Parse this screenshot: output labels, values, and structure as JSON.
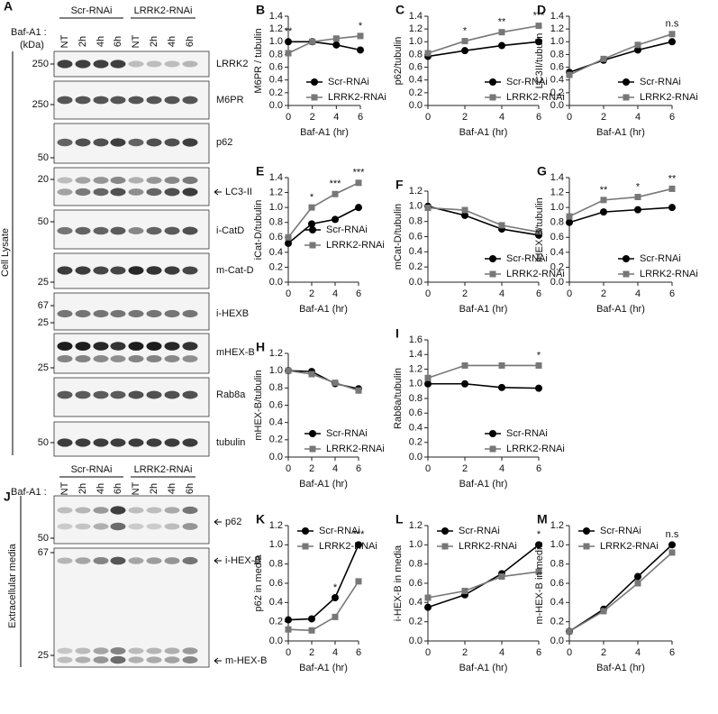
{
  "chart_data": [
    {
      "type": "line",
      "label": "B",
      "ylabel": "M6PR / tubulin",
      "xlabel": "Baf-A1 (hr)",
      "x": [
        0,
        2,
        4,
        6
      ],
      "xlim": [
        0,
        6
      ],
      "xticks": [
        0,
        2,
        4,
        6
      ],
      "ylim": [
        0,
        1.4
      ],
      "yticks": [
        {
          "value": 0,
          "label": "0.0"
        },
        0.2,
        0.4,
        0.6,
        0.8,
        {
          "value": 1,
          "label": "1.0"
        },
        1.2,
        1.4
      ],
      "legend": "lower-right",
      "series": [
        {
          "name": "Scr-RNAi",
          "color": "#000000",
          "values": [
            1.0,
            1.0,
            0.95,
            0.87
          ]
        },
        {
          "name": "LRRK2-RNAi",
          "color": "#777777",
          "values": [
            0.82,
            1.0,
            1.05,
            1.09
          ]
        }
      ],
      "annotations": [
        {
          "x": 0,
          "text": "**"
        },
        {
          "x": 6,
          "text": "*"
        }
      ]
    },
    {
      "type": "line",
      "label": "C",
      "ylabel": "p62/tubulin",
      "xlabel": "Baf-A1 (hr)",
      "x": [
        0,
        2,
        4,
        6
      ],
      "xlim": [
        0,
        6
      ],
      "xticks": [
        0,
        2,
        4,
        6
      ],
      "ylim": [
        0,
        1.4
      ],
      "yticks": [
        {
          "value": 0,
          "label": "0.0"
        },
        0.2,
        0.4,
        0.6,
        0.8,
        {
          "value": 1,
          "label": "1.0"
        },
        1.2,
        1.4
      ],
      "legend": "lower-right",
      "series": [
        {
          "name": "Scr-RNAi",
          "color": "#000000",
          "values": [
            0.77,
            0.86,
            0.94,
            1.0
          ]
        },
        {
          "name": "LRRK2-RNAi",
          "color": "#777777",
          "values": [
            0.82,
            1.01,
            1.15,
            1.25
          ]
        }
      ],
      "annotations": [
        {
          "x": 2,
          "text": "*"
        },
        {
          "x": 4,
          "text": "**"
        },
        {
          "x": 6,
          "text": "***"
        }
      ]
    },
    {
      "type": "line",
      "label": "D",
      "ylabel": "LC3II/tubulin",
      "xlabel": "Baf-A1 (hr)",
      "x": [
        0,
        2,
        4,
        6
      ],
      "xlim": [
        0,
        6
      ],
      "xticks": [
        0,
        2,
        4,
        6
      ],
      "ylim": [
        0,
        1.4
      ],
      "yticks": [
        {
          "value": 0,
          "label": "0.0"
        },
        0.2,
        0.4,
        0.6,
        0.8,
        {
          "value": 1,
          "label": "1.0"
        },
        1.2,
        1.4
      ],
      "legend": "lower-right",
      "series": [
        {
          "name": "Scr-RNAi",
          "color": "#000000",
          "values": [
            0.52,
            0.71,
            0.87,
            1.0
          ]
        },
        {
          "name": "LRRK2-RNAi",
          "color": "#777777",
          "values": [
            0.48,
            0.73,
            0.95,
            1.12
          ]
        }
      ],
      "annotations": [
        {
          "x": 6,
          "text": "n.s"
        }
      ]
    },
    {
      "type": "line",
      "label": "E",
      "ylabel": "iCat-D/tubulin",
      "xlabel": "Baf-A1 (hr)",
      "x": [
        0,
        2,
        4,
        6
      ],
      "xlim": [
        0,
        6
      ],
      "xticks": [
        0,
        2,
        4,
        6
      ],
      "ylim": [
        0,
        1.4
      ],
      "yticks": [
        {
          "value": 0,
          "label": "0.0"
        },
        0.2,
        0.4,
        0.6,
        0.8,
        {
          "value": 1,
          "label": "1.0"
        },
        1.2,
        1.4
      ],
      "legend": "center-right",
      "series": [
        {
          "name": "Scr-RNAi",
          "color": "#000000",
          "values": [
            0.52,
            0.78,
            0.84,
            1.0
          ]
        },
        {
          "name": "LRRK2-RNAi",
          "color": "#777777",
          "values": [
            0.6,
            1.0,
            1.18,
            1.33
          ]
        }
      ],
      "annotations": [
        {
          "x": 2,
          "text": "*"
        },
        {
          "x": 4,
          "text": "***"
        },
        {
          "x": 6,
          "text": "***"
        }
      ]
    },
    {
      "type": "line",
      "label": "F",
      "ylabel": "mCat-D/tubulin",
      "xlabel": "Baf-A1 (hr)",
      "x": [
        0,
        2,
        4,
        6
      ],
      "xlim": [
        0,
        6
      ],
      "xticks": [
        0,
        2,
        4,
        6
      ],
      "ylim": [
        0,
        1.2
      ],
      "yticks": [
        {
          "value": 0,
          "label": "0.0"
        },
        0.2,
        0.4,
        0.6,
        0.8,
        {
          "value": 1,
          "label": "1.0"
        },
        1.2
      ],
      "legend": "lower-right",
      "series": [
        {
          "name": "Scr-RNAi",
          "color": "#000000",
          "values": [
            1.0,
            0.88,
            0.7,
            0.62
          ]
        },
        {
          "name": "LRRK2-RNAi",
          "color": "#777777",
          "values": [
            0.98,
            0.95,
            0.75,
            0.66
          ]
        }
      ],
      "annotations": []
    },
    {
      "type": "line",
      "label": "G",
      "ylabel": "iHEX-B/tubulin",
      "xlabel": "Baf-A1 (hr)",
      "x": [
        0,
        2,
        4,
        6
      ],
      "xlim": [
        0,
        6
      ],
      "xticks": [
        0,
        2,
        4,
        6
      ],
      "ylim": [
        0,
        1.4
      ],
      "yticks": [
        {
          "value": 0,
          "label": "0.0"
        },
        0.2,
        0.4,
        0.6,
        0.8,
        {
          "value": 1,
          "label": "1.0"
        },
        1.2,
        1.4
      ],
      "legend": "lower-right",
      "series": [
        {
          "name": "Scr-RNAi",
          "color": "#000000",
          "values": [
            0.8,
            0.94,
            0.97,
            1.0
          ]
        },
        {
          "name": "LRRK2-RNAi",
          "color": "#777777",
          "values": [
            0.88,
            1.1,
            1.14,
            1.25
          ]
        }
      ],
      "annotations": [
        {
          "x": 2,
          "text": "**"
        },
        {
          "x": 4,
          "text": "*"
        },
        {
          "x": 6,
          "text": "**"
        }
      ]
    },
    {
      "type": "line",
      "label": "H",
      "ylabel": "mHEX-B/tubulin",
      "xlabel": "Baf-A1 (hr)",
      "x": [
        0,
        2,
        4,
        6
      ],
      "xlim": [
        0,
        6
      ],
      "xticks": [
        0,
        2,
        4,
        6
      ],
      "ylim": [
        0,
        1.2
      ],
      "yticks": [
        {
          "value": 0,
          "label": "0.0"
        },
        0.2,
        0.4,
        0.6,
        0.8,
        {
          "value": 1,
          "label": "1.0"
        },
        1.2
      ],
      "legend": "lower-right",
      "series": [
        {
          "name": "Scr-RNAi",
          "color": "#000000",
          "values": [
            1.0,
            0.99,
            0.85,
            0.79
          ]
        },
        {
          "name": "LRRK2-RNAi",
          "color": "#777777",
          "values": [
            1.0,
            0.96,
            0.86,
            0.77
          ]
        }
      ],
      "annotations": []
    },
    {
      "type": "line",
      "label": "I",
      "ylabel": "Rab8a/tubulin",
      "xlabel": "Baf-A1 (hr)",
      "x": [
        0,
        2,
        4,
        6
      ],
      "xlim": [
        0,
        6
      ],
      "xticks": [
        0,
        2,
        4,
        6
      ],
      "ylim": [
        0,
        1.6
      ],
      "yticks": [
        {
          "value": 0,
          "label": "0.0"
        },
        0.2,
        0.4,
        0.6,
        0.8,
        {
          "value": 1,
          "label": "1.0"
        },
        1.2,
        1.4,
        1.6
      ],
      "legend": "lower-right",
      "series": [
        {
          "name": "Scr-RNAi",
          "color": "#000000",
          "values": [
            1.0,
            1.0,
            0.95,
            0.94
          ]
        },
        {
          "name": "LRRK2-RNAi",
          "color": "#777777",
          "values": [
            1.08,
            1.25,
            1.25,
            1.25
          ]
        }
      ],
      "annotations": [
        {
          "x": 6,
          "text": "*"
        }
      ]
    },
    {
      "type": "line",
      "label": "K",
      "ylabel": "p62 in media",
      "xlabel": "Baf-A1 (hr)",
      "x": [
        0,
        2,
        4,
        6
      ],
      "xlim": [
        0,
        6
      ],
      "xticks": [
        0,
        2,
        4,
        6
      ],
      "ylim": [
        0,
        1.2
      ],
      "yticks": [
        {
          "value": 0,
          "label": "0.0"
        },
        0.2,
        0.4,
        0.6,
        0.8,
        {
          "value": 1,
          "label": "1.0"
        },
        1.2
      ],
      "legend": "upper-left",
      "series": [
        {
          "name": "Scr-RNAi",
          "color": "#000000",
          "values": [
            0.22,
            0.23,
            0.45,
            1.0
          ]
        },
        {
          "name": "LRRK2-RNAi",
          "color": "#777777",
          "values": [
            0.12,
            0.11,
            0.25,
            0.62
          ]
        }
      ],
      "annotations": [
        {
          "x": 4,
          "text": "*"
        },
        {
          "x": 6,
          "text": "***"
        }
      ]
    },
    {
      "type": "line",
      "label": "L",
      "ylabel": "i-HEX-B in media",
      "xlabel": "Baf-A1 (hr)",
      "x": [
        0,
        2,
        4,
        6
      ],
      "xlim": [
        0,
        6
      ],
      "xticks": [
        0,
        2,
        4,
        6
      ],
      "ylim": [
        0,
        1.2
      ],
      "yticks": [
        {
          "value": 0,
          "label": "0.0"
        },
        0.2,
        0.4,
        0.6,
        0.8,
        {
          "value": 1,
          "label": "1.0"
        },
        1.2
      ],
      "legend": "upper-left",
      "series": [
        {
          "name": "Scr-RNAi",
          "color": "#000000",
          "values": [
            0.35,
            0.48,
            0.7,
            1.0
          ]
        },
        {
          "name": "LRRK2-RNAi",
          "color": "#777777",
          "values": [
            0.45,
            0.52,
            0.67,
            0.72
          ]
        }
      ],
      "annotations": [
        {
          "x": 6,
          "text": "*"
        }
      ]
    },
    {
      "type": "line",
      "label": "M",
      "ylabel": "m-HEX-B in media",
      "xlabel": "Baf-A1 (hr)",
      "x": [
        0,
        2,
        4,
        6
      ],
      "xlim": [
        0,
        6
      ],
      "xticks": [
        0,
        2,
        4,
        6
      ],
      "ylim": [
        0,
        1.2
      ],
      "yticks": [
        {
          "value": 0,
          "label": "0.0"
        },
        0.2,
        0.4,
        0.6,
        0.8,
        {
          "value": 1,
          "label": "1.0"
        },
        1.2
      ],
      "legend": "upper-left",
      "series": [
        {
          "name": "Scr-RNAi",
          "color": "#000000",
          "values": [
            0.1,
            0.33,
            0.67,
            1.0
          ]
        },
        {
          "name": "LRRK2-RNAi",
          "color": "#777777",
          "values": [
            0.1,
            0.31,
            0.6,
            0.92
          ]
        }
      ],
      "annotations": [
        {
          "x": 6,
          "text": "n.s"
        }
      ]
    }
  ],
  "blot_panels": [
    {
      "label": "A",
      "groups": [
        "Scr-RNAi",
        "LRRK2-RNAi"
      ],
      "treatment": "Baf-A1 :",
      "units": "(kDa)",
      "lanes": [
        "NT",
        "2h",
        "4h",
        "6h",
        "NT",
        "2h",
        "4h",
        "6h"
      ],
      "sample": "Cell Lysate",
      "blots": [
        {
          "markers": [
            250
          ],
          "targets": [
            "LRRK2"
          ]
        },
        {
          "markers": [
            250
          ],
          "targets": [
            "M6PR"
          ]
        },
        {
          "markers": [
            50
          ],
          "targets": [
            "p62"
          ]
        },
        {
          "markers": [
            20
          ],
          "targets": [
            "LC3-II"
          ]
        },
        {
          "markers": [
            50
          ],
          "targets": [
            "i-CatD"
          ]
        },
        {
          "markers": [
            25
          ],
          "targets": [
            "m-Cat-D"
          ]
        },
        {
          "markers": [
            67
          ],
          "targets": [
            "i-HEXB"
          ]
        },
        {
          "markers": [
            25
          ],
          "targets": [
            "mHEX-B"
          ]
        },
        {
          "markers": [
            25
          ],
          "targets": [
            "Rab8a"
          ]
        },
        {
          "markers": [
            50
          ],
          "targets": [
            "tubulin"
          ]
        }
      ]
    },
    {
      "label": "J",
      "groups": [
        "Scr-RNAi",
        "LRRK2-RNAi"
      ],
      "treatment": "Baf-A1 :",
      "lanes": [
        "NT",
        "2h",
        "4h",
        "6h",
        "NT",
        "2h",
        "4h",
        "6h"
      ],
      "sample": "Extracellular media",
      "blots": [
        {
          "markers": [
            50
          ],
          "targets": [
            "p62"
          ]
        },
        {
          "markers": [
            67,
            25
          ],
          "targets": [
            "i-HEX-B",
            "m-HEX-B"
          ]
        }
      ]
    }
  ]
}
